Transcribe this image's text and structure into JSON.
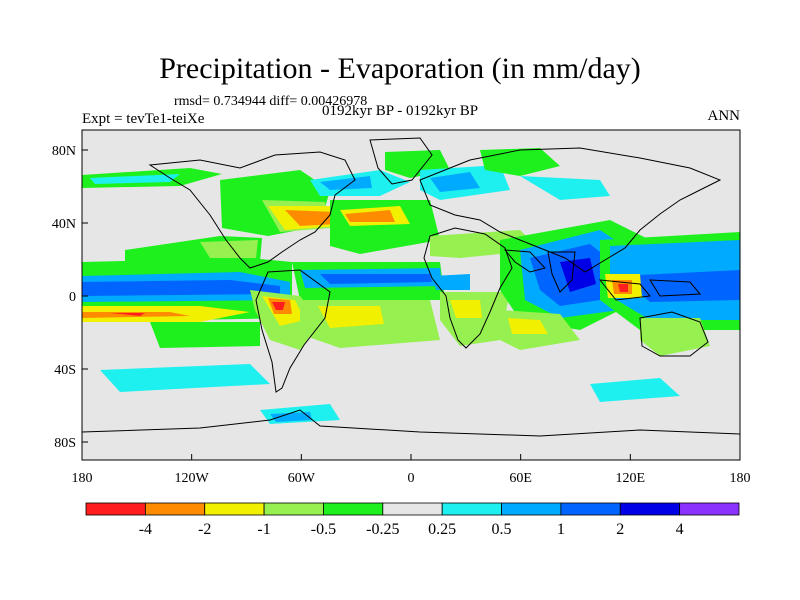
{
  "title": "Precipitation - Evaporation (in mm/day)",
  "stats_line": "rmsd= 0.734944 diff= 0.00426978",
  "experiment_label": "Expt = tevTe1-teiXe",
  "period_label": "0192kyr BP - 0192kyr BP",
  "season_label": "ANN",
  "lat_ticks": [
    "80N",
    "40N",
    "0",
    "40S",
    "80S"
  ],
  "lon_ticks": [
    "180",
    "120W",
    "60W",
    "0",
    "60E",
    "120E",
    "180"
  ],
  "colorbar": {
    "colors": [
      "#ff1e1e",
      "#ff8c00",
      "#f0f000",
      "#96f050",
      "#1ef01e",
      "#e6e6e6",
      "#1ef0f0",
      "#00aaff",
      "#0064ff",
      "#0000e6",
      "#8c32ff"
    ],
    "labels": [
      "-4",
      "-2",
      "-1",
      "-0.5",
      "-0.25",
      "0.25",
      "0.5",
      "1",
      "2",
      "4"
    ]
  }
}
